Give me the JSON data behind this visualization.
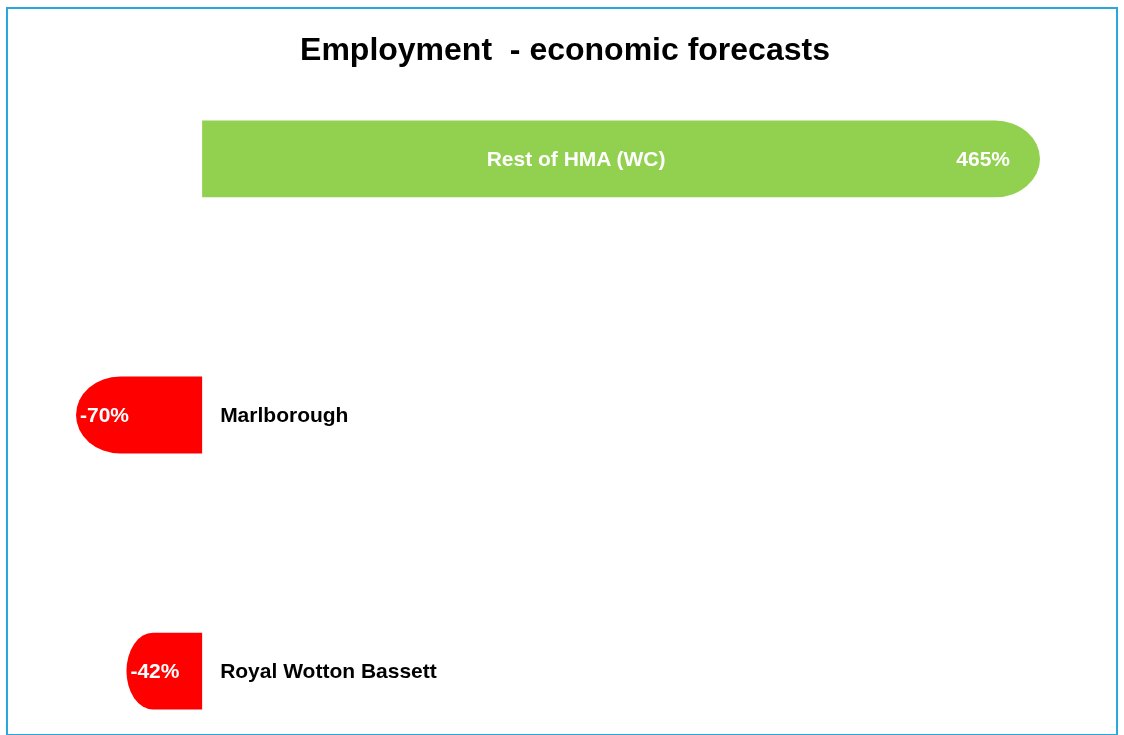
{
  "chart_data": {
    "type": "bar",
    "orientation": "horizontal",
    "title": "Employment  - economic forecasts",
    "categories": [
      "Rest of HMA (WC)",
      "Marlborough",
      "Royal Wotton Bassett"
    ],
    "values": [
      465,
      -70,
      -42
    ],
    "colors": [
      "#92d050",
      "#ff0000",
      "#ff0000"
    ],
    "value_labels": [
      "465%",
      "-70%",
      "-42%"
    ]
  }
}
